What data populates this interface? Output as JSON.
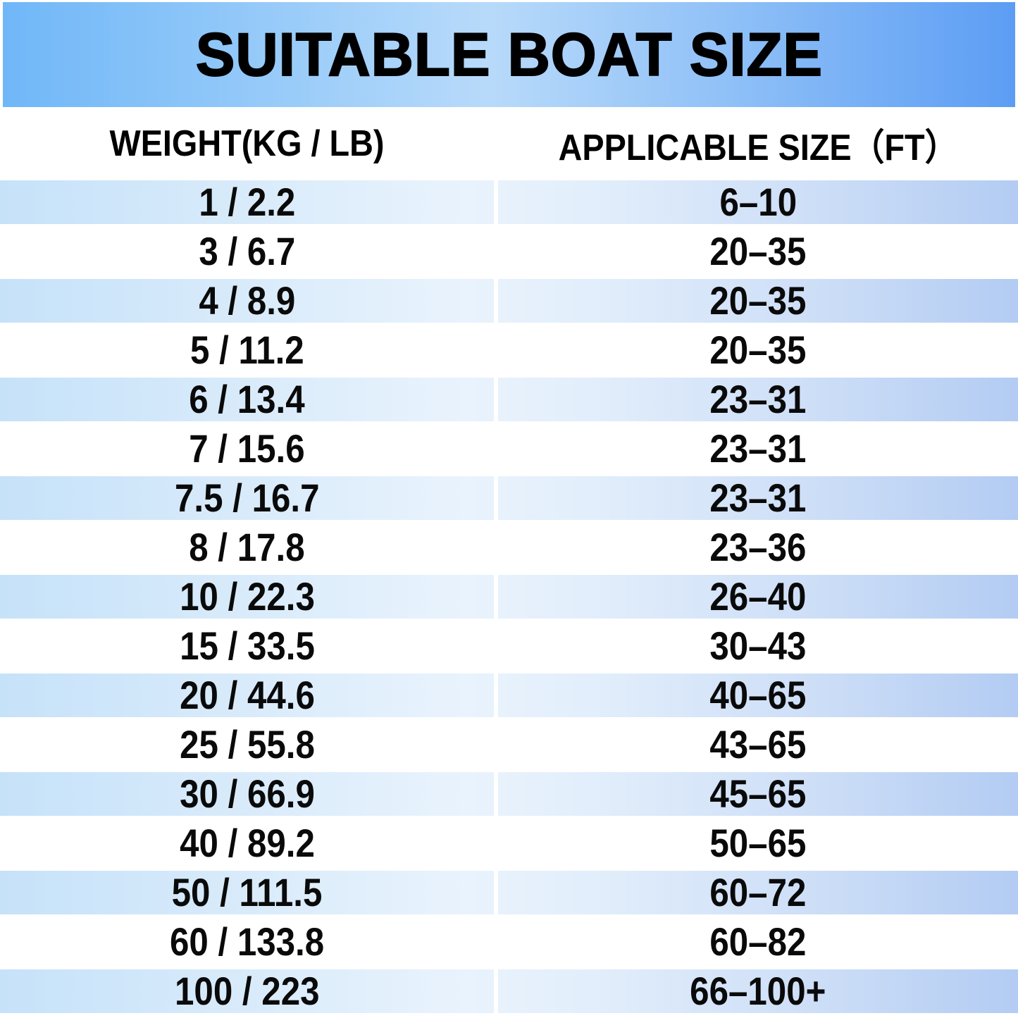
{
  "title": "SUITABLE BOAT SIZE",
  "columns": {
    "weight": "WEIGHT(KG / LB)",
    "size": "APPLICABLE SIZE（FT）"
  },
  "chart_data": {
    "type": "table",
    "title": "SUITABLE BOAT SIZE",
    "columns": [
      "WEIGHT(KG / LB)",
      "APPLICABLE SIZE（FT）"
    ],
    "rows": [
      [
        "1 / 2.2",
        "6–10"
      ],
      [
        "3 / 6.7",
        "20–35"
      ],
      [
        "4 / 8.9",
        "20–35"
      ],
      [
        "5 / 11.2",
        "20–35"
      ],
      [
        "6 / 13.4",
        "23–31"
      ],
      [
        "7 / 15.6",
        "23–31"
      ],
      [
        "7.5 / 16.7",
        "23–31"
      ],
      [
        "8 / 17.8",
        "23–36"
      ],
      [
        "10 / 22.3",
        "26–40"
      ],
      [
        "15 / 33.5",
        "30–43"
      ],
      [
        "20 / 44.6",
        "40–65"
      ],
      [
        "25 / 55.8",
        "43–65"
      ],
      [
        "30 / 66.9",
        "45–65"
      ],
      [
        "40 / 89.2",
        "50–65"
      ],
      [
        "50 / 111.5",
        "60–72"
      ],
      [
        "60 / 133.8",
        "60–82"
      ],
      [
        "100 / 223",
        "66–100+"
      ]
    ],
    "layout_hints": {
      "striping": "odd rows (1st, 3rd, ...) have light blue horizontal gradient; even rows white",
      "legend": "none",
      "grid": "off"
    },
    "colors": {
      "banner_gradient_left": "#70b7f8",
      "banner_gradient_center": "#b8dafa",
      "banner_gradient_right": "#5c9df4",
      "stripe_gradient_left": "#c6e2f9",
      "stripe_gradient_center": "#e9f3fd",
      "stripe_gradient_right": "#b3ccf3",
      "text": "#000000",
      "background": "#ffffff"
    }
  }
}
